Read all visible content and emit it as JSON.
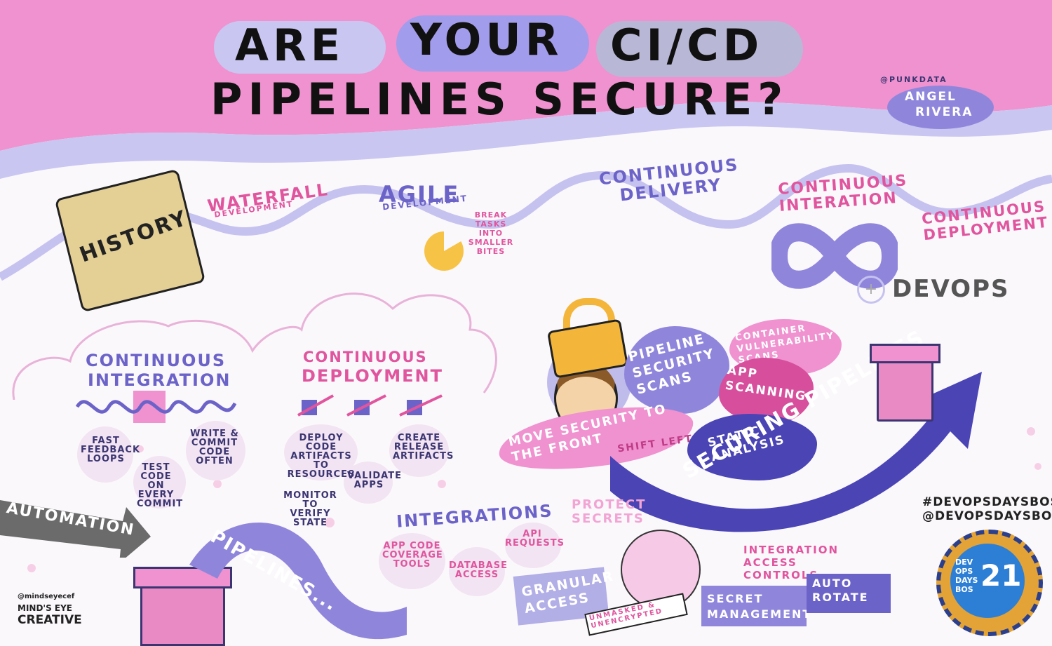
{
  "title": {
    "line1": [
      "ARE",
      "YOUR",
      "CI/CD"
    ],
    "line2": "PIPELINES SECURE?"
  },
  "speaker": {
    "handle": "@PUNKDATA",
    "name_line1": "ANGEL",
    "name_line2": "RIVERA"
  },
  "timeline": {
    "history": "HISTORY",
    "waterfall": "WATERFALL",
    "waterfall_sub": "DEVELOPMENT",
    "agile": "AGILE",
    "agile_sub": "DEVELOPMENT",
    "agile_note": "BREAK TASKS INTO SMALLER BITES",
    "continuous_delivery": "CONTINUOUS DELIVERY",
    "continuous_integration": "CONTINUOUS INTERATION",
    "continuous_deployment": "CONTINUOUS DEPLOYMENT",
    "devops": "DEVOPS"
  },
  "ci_section": {
    "heading_line1": "CONTINUOUS",
    "heading_line2": "INTEGRATION",
    "notes": [
      "FAST FEEDBACK LOOPS",
      "TEST CODE ON EVERY COMMIT",
      "WRITE & COMMIT CODE OFTEN"
    ]
  },
  "cd_section": {
    "heading_line1": "CONTINUOUS",
    "heading_line2": "DEPLOYMENT",
    "notes": [
      "DEPLOY CODE ARTIFACTS TO RESOURCES",
      "CREATE RELEASE ARTIFACTS",
      "VALIDATE APPS",
      "MONITOR TO VERIFY STATE"
    ]
  },
  "security": {
    "pipeline_scans": "PIPELINE SECURITY SCANS",
    "container_scans": "CONTAINER VULNERABILITY SCANS",
    "app_scanning": "APP SCANNING",
    "static_analysis": "STATIC ANALYSIS",
    "move_security": "MOVE SECURITY TO THE FRONT",
    "shift_left": "SHIFT LEFT",
    "securing_pipelines": "SECURING PIPELINES"
  },
  "bottom": {
    "automation": "AUTOMATION",
    "pipelines": "PIPELINES...",
    "integrations": "INTEGRATIONS",
    "integration_notes": [
      "APP CODE COVERAGE TOOLS",
      "DATABASE ACCESS",
      "API REQUESTS"
    ],
    "protect_secrets": "PROTECT SECRETS",
    "granular_access": "GRANULAR ACCESS",
    "unmasked": "UNMASKED & UNENCRYPTED",
    "integration_access": "INTEGRATION ACCESS CONTROLS",
    "secret_management": "SECRET MANAGEMENT",
    "auto_rotate": "AUTO ROTATE"
  },
  "event": {
    "hashtag": "#DEVOPSDAYSBOS",
    "handle": "@DEVOPSDAYSBOS",
    "badge_lines": [
      "DEV",
      "OPS",
      "DAYS",
      "BOS"
    ],
    "badge_number": "21"
  },
  "credit": {
    "handle": "@mindseyecef",
    "name_line1": "MIND'S EYE",
    "name_line2": "CREATIVE"
  },
  "colors": {
    "pink_band": "#ef92cf",
    "lavender": "#c5c2ef",
    "purple": "#6c63c9",
    "dark_purple": "#4a44b5",
    "pink_text": "#e0559e",
    "gray_arrow": "#6b6b6b",
    "pipe_pink": "#e98ac4",
    "lock_gold": "#f3b53a"
  }
}
